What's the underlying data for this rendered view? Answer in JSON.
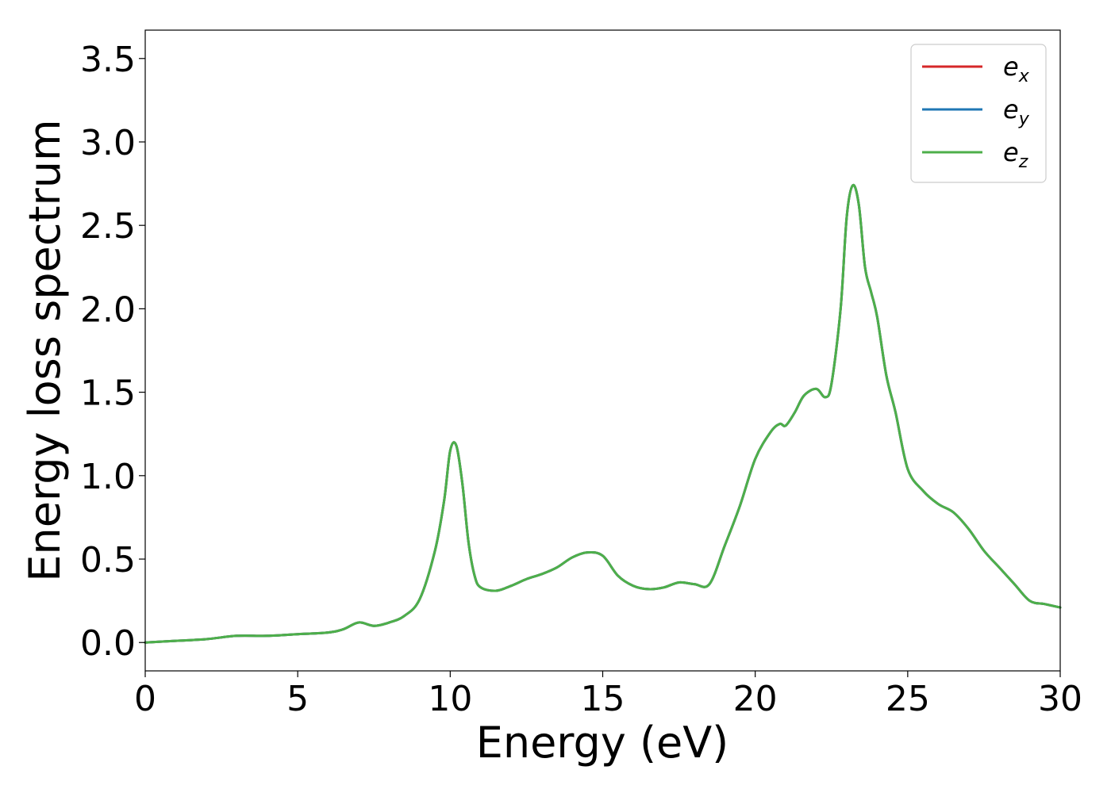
{
  "chart_data": {
    "type": "line",
    "title": "",
    "xlabel": "Energy (eV)",
    "ylabel": "Energy loss spectrum",
    "xlim": [
      0,
      30
    ],
    "ylim": [
      -0.17,
      3.67
    ],
    "xticks": [
      0,
      5,
      10,
      15,
      20,
      25,
      30
    ],
    "xtick_labels": [
      "0",
      "5",
      "10",
      "15",
      "20",
      "25",
      "30"
    ],
    "yticks": [
      0.0,
      0.5,
      1.0,
      1.5,
      2.0,
      2.5,
      3.0,
      3.5
    ],
    "ytick_labels": [
      "0.0",
      "0.5",
      "1.0",
      "1.5",
      "2.0",
      "2.5",
      "3.0",
      "3.5"
    ],
    "grid": false,
    "legend_position": "top-right",
    "legend": [
      {
        "base": "e",
        "sub": "x",
        "color": "#d62728"
      },
      {
        "base": "e",
        "sub": "y",
        "color": "#1f77b4"
      },
      {
        "base": "e",
        "sub": "z",
        "color": "#4daf4a"
      }
    ],
    "x": [
      0,
      1,
      2,
      3,
      4,
      5,
      6,
      6.5,
      7,
      7.5,
      8,
      8.5,
      9,
      9.5,
      9.8,
      10,
      10.2,
      10.4,
      10.6,
      10.8,
      11,
      11.5,
      12,
      12.5,
      13,
      13.5,
      14,
      14.5,
      15,
      15.5,
      16,
      16.5,
      17,
      17.5,
      18,
      18.5,
      19,
      19.5,
      20,
      20.5,
      20.8,
      21,
      21.3,
      21.6,
      22,
      22.3,
      22.5,
      22.8,
      23,
      23.2,
      23.4,
      23.6,
      23.8,
      24,
      24.3,
      24.6,
      25,
      25.5,
      26,
      26.5,
      27,
      27.5,
      28,
      28.5,
      29,
      29.5,
      30
    ],
    "series": [
      {
        "name": "e_x",
        "color": "#d62728",
        "y": [
          0.0,
          0.01,
          0.02,
          0.04,
          0.04,
          0.05,
          0.06,
          0.08,
          0.12,
          0.1,
          0.12,
          0.16,
          0.26,
          0.55,
          0.85,
          1.15,
          1.18,
          0.95,
          0.6,
          0.4,
          0.33,
          0.31,
          0.34,
          0.38,
          0.41,
          0.45,
          0.51,
          0.54,
          0.52,
          0.4,
          0.34,
          0.32,
          0.33,
          0.36,
          0.35,
          0.35,
          0.58,
          0.82,
          1.1,
          1.26,
          1.31,
          1.3,
          1.38,
          1.48,
          1.52,
          1.47,
          1.55,
          2.0,
          2.55,
          2.74,
          2.62,
          2.25,
          2.1,
          1.95,
          1.6,
          1.38,
          1.04,
          0.91,
          0.83,
          0.78,
          0.68,
          0.55,
          0.45,
          0.35,
          0.25,
          0.23,
          0.21
        ]
      },
      {
        "name": "e_y",
        "color": "#1f77b4",
        "y": [
          0.0,
          0.01,
          0.02,
          0.04,
          0.04,
          0.05,
          0.06,
          0.08,
          0.12,
          0.1,
          0.12,
          0.16,
          0.26,
          0.55,
          0.85,
          1.15,
          1.18,
          0.95,
          0.6,
          0.4,
          0.33,
          0.31,
          0.34,
          0.38,
          0.41,
          0.45,
          0.51,
          0.54,
          0.52,
          0.4,
          0.34,
          0.32,
          0.33,
          0.36,
          0.35,
          0.35,
          0.58,
          0.82,
          1.1,
          1.26,
          1.31,
          1.3,
          1.38,
          1.48,
          1.52,
          1.47,
          1.55,
          2.0,
          2.55,
          2.74,
          2.62,
          2.25,
          2.1,
          1.95,
          1.6,
          1.38,
          1.04,
          0.91,
          0.83,
          0.78,
          0.68,
          0.55,
          0.45,
          0.35,
          0.25,
          0.23,
          0.21
        ]
      },
      {
        "name": "e_z",
        "color": "#4daf4a",
        "y": [
          0.0,
          0.01,
          0.02,
          0.04,
          0.04,
          0.05,
          0.06,
          0.08,
          0.12,
          0.1,
          0.12,
          0.16,
          0.26,
          0.55,
          0.85,
          1.15,
          1.18,
          0.95,
          0.6,
          0.4,
          0.33,
          0.31,
          0.34,
          0.38,
          0.41,
          0.45,
          0.51,
          0.54,
          0.52,
          0.4,
          0.34,
          0.32,
          0.33,
          0.36,
          0.35,
          0.35,
          0.58,
          0.82,
          1.1,
          1.26,
          1.31,
          1.3,
          1.38,
          1.48,
          1.52,
          1.47,
          1.55,
          2.0,
          2.55,
          2.74,
          2.62,
          2.25,
          2.1,
          1.95,
          1.6,
          1.38,
          1.04,
          0.91,
          0.83,
          0.78,
          0.68,
          0.55,
          0.45,
          0.35,
          0.25,
          0.23,
          0.21
        ]
      }
    ]
  }
}
